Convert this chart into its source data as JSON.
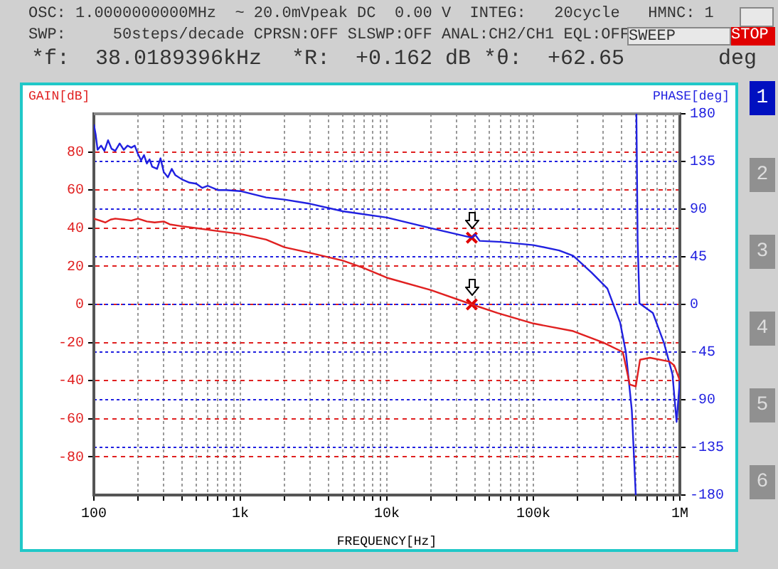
{
  "chart_data": {
    "type": "line",
    "xlabel": "FREQUENCY[Hz]",
    "ylabel": "GAIN[dB]",
    "y2label": "PHASE[deg]",
    "log": "x",
    "grid": true,
    "legend": false,
    "marker": "none",
    "line_style": "solid",
    "xlim": [
      100,
      1000000
    ],
    "xticks": [
      {
        "value": 100,
        "label": "100"
      },
      {
        "value": 200,
        "label": null
      },
      {
        "value": 300,
        "label": null
      },
      {
        "value": 400,
        "label": null
      },
      {
        "value": 500,
        "label": null
      },
      {
        "value": 600,
        "label": null
      },
      {
        "value": 700,
        "label": null
      },
      {
        "value": 800,
        "label": null
      },
      {
        "value": 900,
        "label": null
      },
      {
        "value": 1000,
        "label": "1k"
      },
      {
        "value": 2000,
        "label": null
      },
      {
        "value": 3000,
        "label": null
      },
      {
        "value": 4000,
        "label": null
      },
      {
        "value": 5000,
        "label": null
      },
      {
        "value": 6000,
        "label": null
      },
      {
        "value": 7000,
        "label": null
      },
      {
        "value": 8000,
        "label": null
      },
      {
        "value": 9000,
        "label": null
      },
      {
        "value": 10000,
        "label": "10k"
      },
      {
        "value": 20000,
        "label": null
      },
      {
        "value": 30000,
        "label": null
      },
      {
        "value": 40000,
        "label": null
      },
      {
        "value": 50000,
        "label": null
      },
      {
        "value": 60000,
        "label": null
      },
      {
        "value": 70000,
        "label": null
      },
      {
        "value": 80000,
        "label": null
      },
      {
        "value": 90000,
        "label": null
      },
      {
        "value": 100000,
        "label": "100k"
      },
      {
        "value": 200000,
        "label": null
      },
      {
        "value": 300000,
        "label": null
      },
      {
        "value": 400000,
        "label": null
      },
      {
        "value": 500000,
        "label": null
      },
      {
        "value": 600000,
        "label": null
      },
      {
        "value": 700000,
        "label": null
      },
      {
        "value": 800000,
        "label": null
      },
      {
        "value": 900000,
        "label": null
      },
      {
        "value": 1000000,
        "label": "1M"
      }
    ],
    "ylim": [
      -100,
      100
    ],
    "yticks": [
      -80,
      -60,
      -40,
      -20,
      0,
      20,
      40,
      60,
      80
    ],
    "y2lim": [
      -180,
      180
    ],
    "y2ticks": [
      -180,
      -135,
      -90,
      -45,
      0,
      45,
      90,
      135,
      180
    ],
    "series": [
      {
        "color": "#e02020",
        "x": [
          100,
          110,
          120,
          130,
          140,
          160,
          180,
          200,
          230,
          260,
          300,
          330,
          400,
          500,
          700,
          1000,
          1500,
          2000,
          3000,
          5000,
          7000,
          10000,
          20000,
          38000,
          57000,
          100000,
          187000,
          300000,
          408000,
          455000,
          500000,
          535000,
          625000,
          850000,
          915000,
          1000000
        ],
        "values": [
          45,
          44,
          43,
          44.5,
          45,
          44.5,
          44,
          45,
          43.5,
          43,
          43.5,
          42,
          41,
          40,
          38.5,
          37,
          34,
          30,
          27,
          23,
          19,
          14,
          7.5,
          0,
          -4.5,
          -10,
          -14,
          -20,
          -25,
          -42,
          -43,
          -29,
          -28,
          -30,
          -32,
          -40
        ]
      },
      {
        "color": "#2020e0",
        "axis": "y2",
        "x": [
          100,
          103,
          106,
          112,
          118,
          125,
          132,
          140,
          150,
          160,
          170,
          180,
          190,
          200,
          210,
          220,
          230,
          240,
          250,
          270,
          285,
          300,
          320,
          340,
          360,
          400,
          450,
          500,
          550,
          600,
          700,
          800,
          1000,
          1500,
          2000,
          3000,
          5000,
          10000,
          20000,
          38000,
          40000,
          43000,
          60000,
          100000,
          150000,
          187000,
          250000,
          320000,
          391000,
          428000,
          470000,
          500000,
          503000,
          505000,
          515000,
          530000,
          654000,
          782000,
          890000,
          950000,
          1000000
        ],
        "values": [
          170,
          160,
          146,
          150,
          145,
          155,
          147,
          145,
          152,
          146,
          150,
          148,
          150,
          142,
          136,
          141,
          133,
          137,
          130,
          128,
          138,
          125,
          120,
          128,
          122,
          118,
          115,
          114,
          110,
          112,
          108,
          108,
          107,
          101,
          99,
          95,
          88,
          82,
          72,
          63,
          66,
          60,
          59,
          56,
          51,
          46,
          30,
          15,
          -17,
          -45,
          -100,
          -180,
          null,
          180,
          60,
          1,
          -8,
          -37,
          -66,
          -111,
          -71
        ]
      },
      {
        "type": "scatter",
        "marker": "cross",
        "color": "#e00000",
        "x": [
          38000
        ],
        "values": [
          0
        ]
      },
      {
        "type": "scatter",
        "marker": "cross",
        "color": "#e00000",
        "axis": "y2",
        "x": [
          38000
        ],
        "values": [
          63
        ]
      }
    ],
    "annotations": [
      "OSC: 1.0000000000MHz  ~ 20.0mVpeak DC  0.00 V  INTEG:   20cycle   HMNC: 1",
      "SWP:     50steps/decade CPRSN:OFF SLSWP:OFF ANAL:CH2/CH1 EQL:OFF",
      "SWEEP",
      "STOP",
      "*f:  38.0189396kHz",
      "*R:  +0.162 dB",
      "*θ:  +62.65",
      "deg",
      "1",
      "2",
      "3",
      "4",
      "5",
      "6"
    ]
  }
}
